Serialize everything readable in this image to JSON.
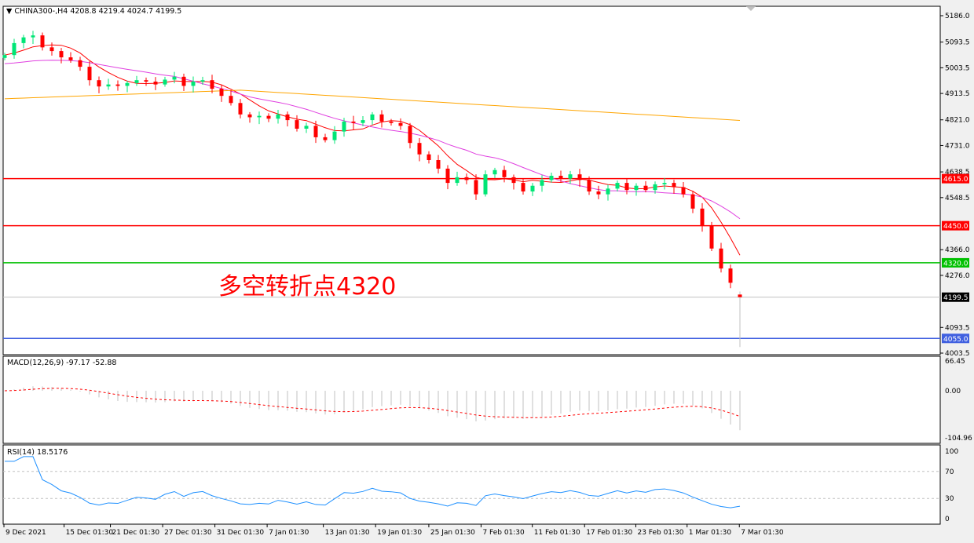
{
  "header": {
    "symbol": "CHINA300-,H4",
    "ohlc": "4208.8 4219.4 4024.7 4199.5"
  },
  "annotation": "多空转折点4320",
  "price_axis": {
    "ticks": [
      "5186.0",
      "5093.5",
      "5003.5",
      "4913.5",
      "4821.0",
      "4731.0",
      "4638.5",
      "4548.5",
      "4366.0",
      "4276.0",
      "4093.5",
      "4003.5"
    ],
    "tick_values": [
      5186.0,
      5093.5,
      5003.5,
      4913.5,
      4821.0,
      4731.0,
      4638.5,
      4548.5,
      4366.0,
      4276.0,
      4093.5,
      4003.5
    ]
  },
  "levels": [
    {
      "label": "4615.0",
      "value": 4615.0,
      "color": "#ff0000"
    },
    {
      "label": "4450.0",
      "value": 4450.0,
      "color": "#ff0000"
    },
    {
      "label": "4320.0",
      "value": 4320.0,
      "color": "#00c000"
    },
    {
      "label": "4199.5",
      "value": 4199.5,
      "color": "#000000",
      "line": "#c0c0c0"
    },
    {
      "label": "4055.0",
      "value": 4055.0,
      "color": "#4060e0"
    }
  ],
  "macd": {
    "label": "MACD(12,26,9) -97.17 -52.88",
    "ticks": [
      "66.45",
      "0.00",
      "-104.96"
    ]
  },
  "rsi": {
    "label": "RSI(14) 18.5176",
    "ticks": [
      "100",
      "70",
      "30",
      "0"
    ]
  },
  "time_axis": [
    "9 Dec 2021",
    "15 Dec 01:30",
    "21 Dec 01:30",
    "27 Dec 01:30",
    "31 Dec 01:30",
    "7 Jan 01:30",
    "13 Jan 01:30",
    "19 Jan 01:30",
    "25 Jan 01:30",
    "7 Feb 01:30",
    "11 Feb 01:30",
    "17 Feb 01:30",
    "23 Feb 01:30",
    "1 Mar 01:30",
    "7 Mar 01:30"
  ],
  "colors": {
    "bull": "#00e676",
    "bear": "#ff0000",
    "ma_fast": "#ff0000",
    "ma_mid": "#e040e0",
    "ma_slow": "#ffa500",
    "rsi": "#1e90ff"
  },
  "chart_data": {
    "type": "candlestick",
    "last": {
      "open": 4208.8,
      "high": 4219.4,
      "low": 4024.7,
      "close": 4199.5
    },
    "closes": [
      5048,
      5090,
      5110,
      5117,
      5075,
      5062,
      5040,
      5030,
      5007,
      4960,
      4938,
      4945,
      4940,
      4950,
      4960,
      4955,
      4945,
      4962,
      4972,
      4940,
      4955,
      4960,
      4930,
      4905,
      4880,
      4840,
      4830,
      4835,
      4825,
      4840,
      4820,
      4790,
      4800,
      4760,
      4750,
      4780,
      4815,
      4810,
      4820,
      4840,
      4815,
      4810,
      4800,
      4740,
      4700,
      4680,
      4650,
      4600,
      4620,
      4610,
      4560,
      4630,
      4645,
      4620,
      4600,
      4570,
      4590,
      4610,
      4625,
      4615,
      4630,
      4610,
      4570,
      4560,
      4580,
      4600,
      4575,
      4590,
      4575,
      4595,
      4600,
      4585,
      4560,
      4510,
      4450,
      4370,
      4300,
      4250,
      4199.5
    ]
  }
}
